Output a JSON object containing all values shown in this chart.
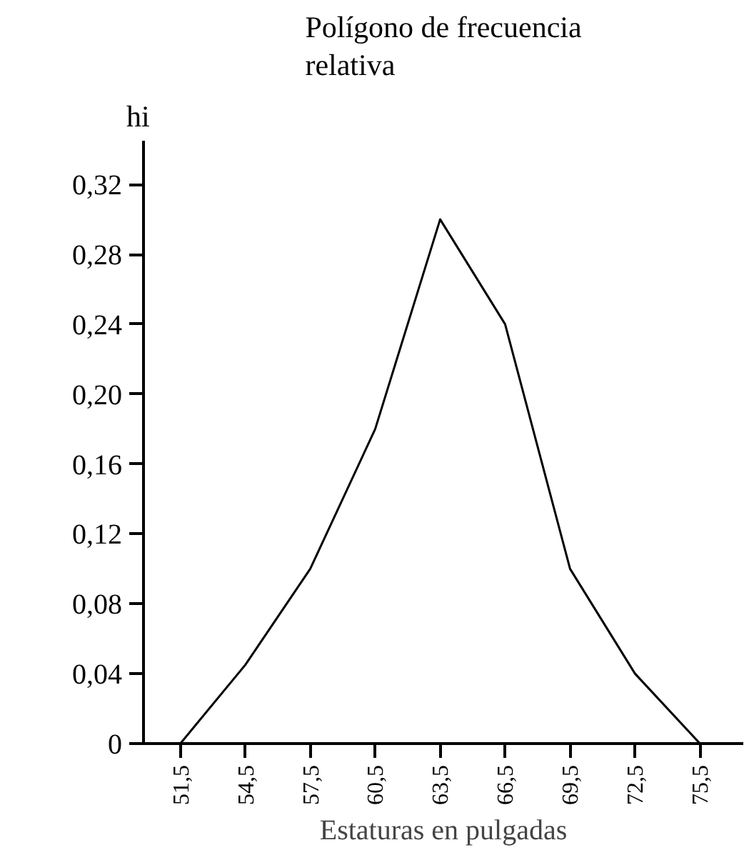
{
  "chart_data": {
    "type": "line",
    "title": "Polígono de frecuencia\nrelativa",
    "xlabel": "Estaturas en pulgadas",
    "ylabel": "hi",
    "x": [
      51.5,
      54.5,
      57.5,
      60.5,
      63.5,
      66.5,
      69.5,
      72.5,
      75.5
    ],
    "series": [
      {
        "color": "#000000",
        "values": [
          0,
          0.045,
          0.1,
          0.18,
          0.3,
          0.24,
          0.1,
          0.04,
          0
        ]
      }
    ],
    "xlim": [
      49.8,
      77.5
    ],
    "ylim": [
      0,
      0.345
    ],
    "xticks": [
      {
        "value": 51.5,
        "label": "51,5"
      },
      {
        "value": 54.5,
        "label": "54,5"
      },
      {
        "value": 57.5,
        "label": "57,5"
      },
      {
        "value": 60.5,
        "label": "60,5"
      },
      {
        "value": 63.5,
        "label": "63,5"
      },
      {
        "value": 66.5,
        "label": "66,5"
      },
      {
        "value": 69.5,
        "label": "69,5"
      },
      {
        "value": 72.5,
        "label": "72,5"
      },
      {
        "value": 75.5,
        "label": "75,5"
      }
    ],
    "yticks": [
      0,
      {
        "value": 0.04,
        "label": "0,04"
      },
      {
        "value": 0.08,
        "label": "0,08"
      },
      {
        "value": 0.12,
        "label": "0,12"
      },
      {
        "value": 0.16,
        "label": "0,16"
      },
      {
        "value": 0.2,
        "label": "0,20"
      },
      {
        "value": 0.24,
        "label": "0,24"
      },
      {
        "value": 0.28,
        "label": "0,28"
      },
      {
        "value": 0.32,
        "label": "0,32"
      }
    ],
    "grid": false,
    "marker": "none",
    "line_style": "solid"
  }
}
